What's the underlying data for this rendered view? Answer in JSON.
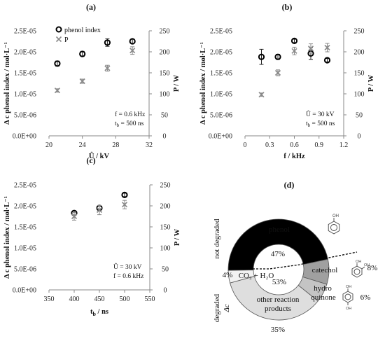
{
  "chart_data": [
    {
      "panel": "(a)",
      "type": "scatter",
      "xlabel": "Û / kV",
      "ylabel_left": "Δ c phenol index / mol·L⁻¹",
      "ylabel_right": "P / W",
      "xlim": [
        20,
        32
      ],
      "xticks": [
        20,
        24,
        28,
        32
      ],
      "ylim_left": [
        0,
        2.5e-05
      ],
      "yticks_left": [
        "0.0E+00",
        "5.0E-06",
        "1.0E-05",
        "1.5E-05",
        "2.0E-05",
        "2.5E-05"
      ],
      "ylim_right": [
        0,
        250
      ],
      "yticks_right": [
        0,
        50,
        100,
        150,
        200,
        250
      ],
      "legend": [
        "phenol index",
        "P"
      ],
      "conditions": [
        "f = 0.6 kHz",
        "tb = 500 ns"
      ],
      "series": [
        {
          "name": "phenol index",
          "axis": "left",
          "marker": "circle",
          "x": [
            21,
            24,
            27,
            30
          ],
          "y": [
            1.72e-05,
            1.95e-05,
            2.22e-05,
            2.25e-05
          ],
          "err": [
            6e-07,
            6e-07,
            9e-07,
            5e-07
          ]
        },
        {
          "name": "P",
          "axis": "right",
          "marker": "x",
          "x": [
            21,
            24,
            27,
            30
          ],
          "y": [
            108,
            130,
            161,
            203
          ],
          "err": [
            4,
            5,
            7,
            9
          ]
        }
      ]
    },
    {
      "panel": "(b)",
      "type": "scatter",
      "xlabel": "f / kHz",
      "ylabel_left": "Δ c phenol index / mol·L⁻¹",
      "ylabel_right": "P / W",
      "xlim": [
        0,
        1.2
      ],
      "xticks": [
        0,
        0.3,
        0.6,
        0.9,
        1.2
      ],
      "xticklabels": [
        "0",
        "0.3",
        "0.6",
        "0.9",
        "1.2"
      ],
      "ylim_left": [
        0,
        2.5e-05
      ],
      "yticks_left": [
        "0.0E+00",
        "5.0E-06",
        "1.0E-05",
        "1.5E-05",
        "2.0E-05",
        "2.5E-05"
      ],
      "ylim_right": [
        0,
        250
      ],
      "yticks_right": [
        0,
        50,
        100,
        150,
        200,
        250
      ],
      "conditions": [
        "Û = 30 kV",
        "tb = 500 ns"
      ],
      "series": [
        {
          "name": "phenol index",
          "axis": "left",
          "marker": "circle",
          "x": [
            0.2,
            0.4,
            0.6,
            0.8,
            1.0
          ],
          "y": [
            1.88e-05,
            1.88e-05,
            2.26e-05,
            1.96e-05,
            1.8e-05
          ],
          "err": [
            1.8e-06,
            6e-07,
            4e-07,
            1.4e-06,
            4e-07
          ]
        },
        {
          "name": "P",
          "axis": "right",
          "marker": "x",
          "x": [
            0.2,
            0.4,
            0.6,
            0.8,
            1.0
          ],
          "y": [
            98,
            150,
            202,
            208,
            210
          ],
          "err": [
            4,
            7,
            9,
            11,
            10
          ]
        }
      ]
    },
    {
      "panel": "(c)",
      "type": "scatter",
      "xlabel": "tb / ns",
      "ylabel_left": "Δ c phenol index / mol·L⁻¹",
      "ylabel_right": "P / W",
      "xlim": [
        350,
        550
      ],
      "xticks": [
        350,
        400,
        450,
        500,
        550
      ],
      "ylim_left": [
        0,
        2.5e-05
      ],
      "yticks_left": [
        "0.0E+00",
        "5.0E-06",
        "1.0E-05",
        "1.5E-05",
        "2.0E-05",
        "2.5E-05"
      ],
      "ylim_right": [
        0,
        250
      ],
      "yticks_right": [
        0,
        50,
        100,
        150,
        200,
        250
      ],
      "conditions": [
        "Û = 30 kV",
        "f = 0.6 kHz"
      ],
      "series": [
        {
          "name": "phenol index",
          "axis": "left",
          "marker": "circle",
          "x": [
            400,
            450,
            500
          ],
          "y": [
            1.83e-05,
            1.95e-05,
            2.26e-05
          ],
          "err": [
            5e-07,
            5e-07,
            4e-07
          ]
        },
        {
          "name": "P",
          "axis": "right",
          "marker": "x",
          "x": [
            400,
            450,
            500
          ],
          "y": [
            175,
            190,
            203
          ],
          "err": [
            9,
            11,
            10
          ]
        }
      ]
    },
    {
      "panel": "(d)",
      "type": "pie",
      "inner_labels": [
        "47%",
        "53%"
      ],
      "group_labels": [
        "not degraded",
        "degraded Δc"
      ],
      "slices": [
        {
          "label": "phenol",
          "value": 47,
          "color": "#000000"
        },
        {
          "label": "catechol",
          "value": 8,
          "color": "#a0a0a0",
          "outer_label": "8%"
        },
        {
          "label": "hydro quinone",
          "value": 6,
          "color": "#c4c4c4",
          "outer_label": "6%"
        },
        {
          "label": "other reaction products",
          "value": 35,
          "color": "#dedede",
          "outer_label": "35%"
        },
        {
          "label": "CO2 + H2O",
          "value": 4,
          "color": "#f2f2f2",
          "outer_label": "4%"
        }
      ]
    }
  ],
  "texts": {
    "legend_phenol": "phenol index",
    "legend_p": "P",
    "a_cond1": "f = 0.6 kHz",
    "a_cond2_main": "t",
    "a_cond2_sub": "b",
    "a_cond2_rest": " = 500 ns",
    "b_cond1": "Û = 30 kV",
    "b_cond2_main": "t",
    "b_cond2_sub": "b",
    "b_cond2_rest": " = 500 ns",
    "c_cond1": "Û = 30 kV",
    "c_cond2": "f = 0.6 kHz",
    "c_xlabel_main": "t",
    "c_xlabel_sub": "b",
    "c_xlabel_rest": " / ns",
    "ylabel_left": "Δ c phenol index / mol·L⁻¹",
    "ylabel_right": "P / W",
    "d_phenol": "phenol",
    "d_47": "47%",
    "d_53": "53%",
    "d_catechol": "catechol",
    "d_hydro1": "hydro",
    "d_hydro2": "quinone",
    "d_other1": "other reaction",
    "d_other2": "products",
    "d_co2": "CO₂ + H₂O",
    "d_8": "8%",
    "d_6": "6%",
    "d_35": "35%",
    "d_4": "4%",
    "d_not_degraded": "not degraded",
    "d_degraded": "degraded",
    "d_delta_c": "Δc"
  }
}
